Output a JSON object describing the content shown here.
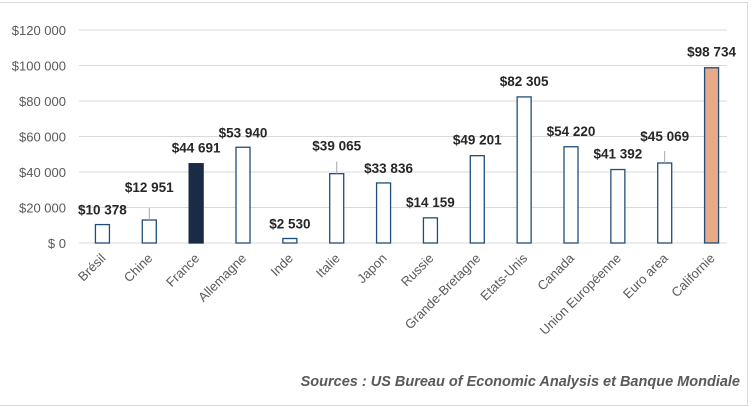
{
  "chart_data": {
    "type": "bar",
    "title": "",
    "xlabel": "",
    "ylabel": "",
    "ylim": [
      0,
      120000
    ],
    "yticks": [
      0,
      20000,
      40000,
      60000,
      80000,
      100000,
      120000
    ],
    "ytick_labels": [
      "$ 0",
      "$20 000",
      "$40 000",
      "$60 000",
      "$80 000",
      "$100 000",
      "$120 000"
    ],
    "grid": true,
    "categories": [
      "Brésil",
      "Chine",
      "France",
      "Allemagne",
      "Inde",
      "Italie",
      "Japon",
      "Russie",
      "Grande-Bretagne",
      "Etats-Unis",
      "Canada",
      "Union Européenne",
      "Euro area",
      "Californie"
    ],
    "values": [
      10378,
      12951,
      44691,
      53940,
      2530,
      39065,
      33836,
      14159,
      49201,
      82305,
      54220,
      41392,
      45069,
      98734
    ],
    "data_labels": [
      "$10 378",
      "$12 951",
      "$44 691",
      "$53 940",
      "$2 530",
      "$39 065",
      "$33 836",
      "$14 159",
      "$49 201",
      "$82 305",
      "$54 220",
      "$41 392",
      "$45 069",
      "$98 734"
    ],
    "colors": {
      "default_fill": "#ffffff",
      "default_stroke": "#1f4e79",
      "France": "#1a2b45",
      "Californie": "#e8a987",
      "grid": "#d9d9d9"
    }
  },
  "source": "Sources : US Bureau of Economic Analysis et Banque Mondiale"
}
